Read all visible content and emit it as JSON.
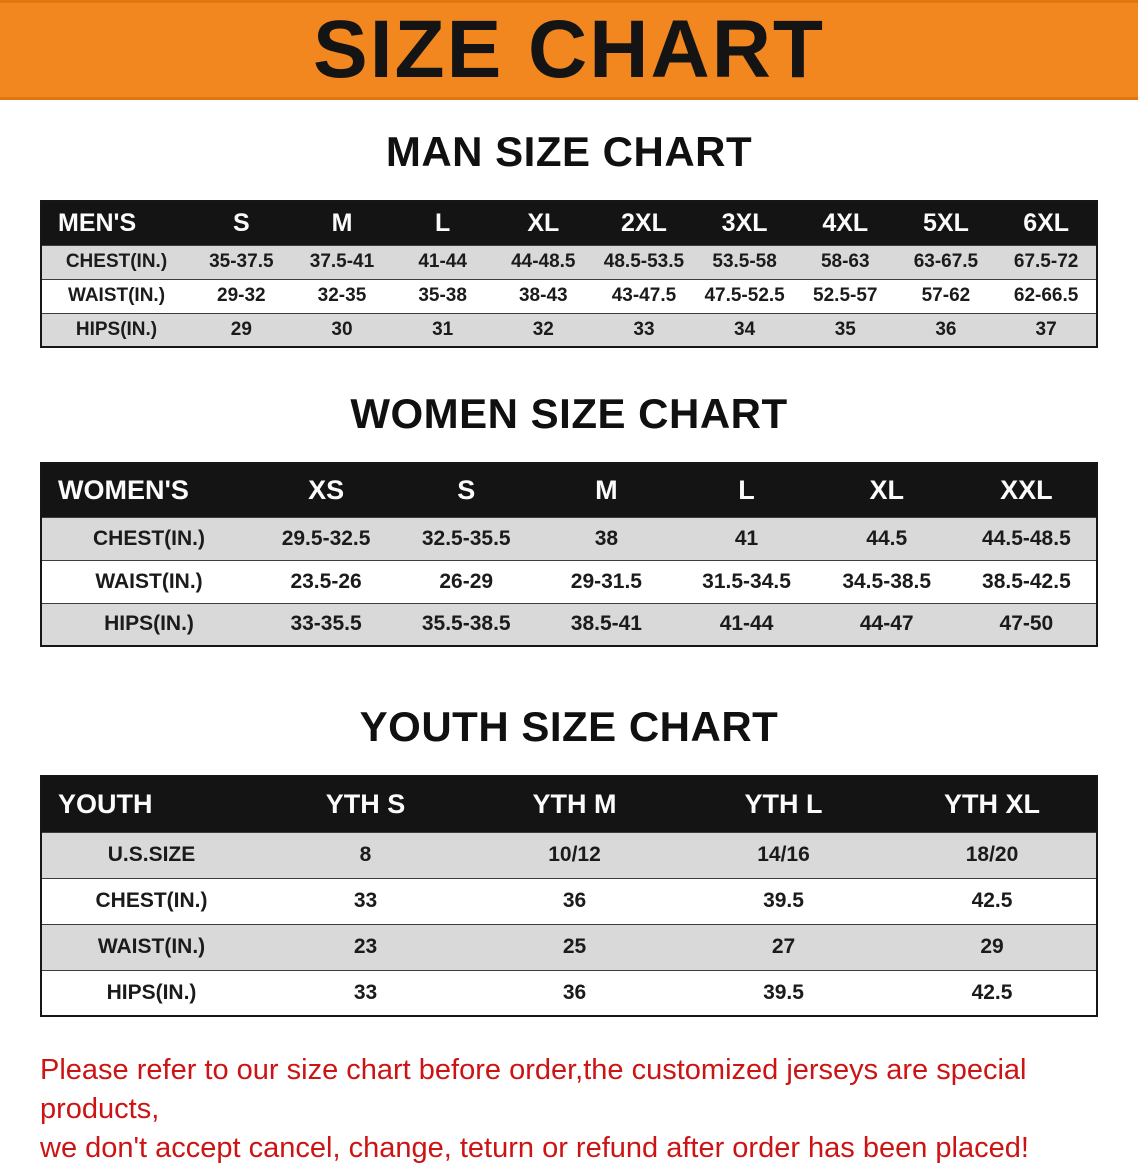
{
  "banner": {
    "title": "SIZE CHART"
  },
  "men": {
    "heading": "MAN SIZE CHART",
    "header": [
      "MEN'S",
      "S",
      "M",
      "L",
      "XL",
      "2XL",
      "3XL",
      "4XL",
      "5XL",
      "6XL"
    ],
    "rows": [
      [
        "CHEST(IN.)",
        "35-37.5",
        "37.5-41",
        "41-44",
        "44-48.5",
        "48.5-53.5",
        "53.5-58",
        "58-63",
        "63-67.5",
        "67.5-72"
      ],
      [
        "WAIST(IN.)",
        "29-32",
        "32-35",
        "35-38",
        "38-43",
        "43-47.5",
        "47.5-52.5",
        "52.5-57",
        "57-62",
        "62-66.5"
      ],
      [
        "HIPS(IN.)",
        "29",
        "30",
        "31",
        "32",
        "33",
        "34",
        "35",
        "36",
        "37"
      ]
    ]
  },
  "women": {
    "heading": "WOMEN SIZE CHART",
    "header": [
      "WOMEN'S",
      "XS",
      "S",
      "M",
      "L",
      "XL",
      "XXL"
    ],
    "rows": [
      [
        "CHEST(IN.)",
        "29.5-32.5",
        "32.5-35.5",
        "38",
        "41",
        "44.5",
        "44.5-48.5"
      ],
      [
        "WAIST(IN.)",
        "23.5-26",
        "26-29",
        "29-31.5",
        "31.5-34.5",
        "34.5-38.5",
        "38.5-42.5"
      ],
      [
        "HIPS(IN.)",
        "33-35.5",
        "35.5-38.5",
        "38.5-41",
        "41-44",
        "44-47",
        "47-50"
      ]
    ]
  },
  "youth": {
    "heading": "YOUTH SIZE CHART",
    "header": [
      "YOUTH",
      "YTH S",
      "YTH M",
      "YTH L",
      "YTH XL"
    ],
    "rows": [
      [
        "U.S.SIZE",
        "8",
        "10/12",
        "14/16",
        "18/20"
      ],
      [
        "CHEST(IN.)",
        "33",
        "36",
        "39.5",
        "42.5"
      ],
      [
        "WAIST(IN.)",
        "23",
        "25",
        "27",
        "29"
      ],
      [
        "HIPS(IN.)",
        "33",
        "36",
        "39.5",
        "42.5"
      ]
    ]
  },
  "footer": {
    "line1": "Please refer to our size chart before order,the customized jerseys are special products,",
    "line2": "we don't accept cancel, change, teturn or refund after order has been placed!"
  },
  "colors": {
    "banner_bg": "#f1871e",
    "table_header_bg": "#141414",
    "row_alt_bg": "#d9d9d9",
    "footer_text": "#cc1414"
  }
}
